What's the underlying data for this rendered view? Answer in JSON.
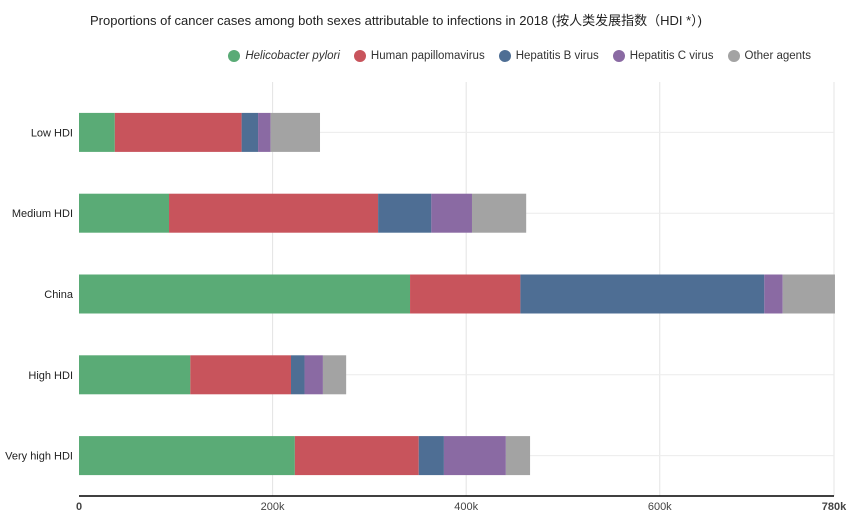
{
  "chart_data": {
    "type": "bar",
    "orientation": "horizontal",
    "stacked": true,
    "title": "Proportions of cancer cases among both sexes attributable to infections in 2018 (按人类发展指数（HDI *）)",
    "xlabel": "",
    "ylabel": "",
    "xlim": [
      0,
      780000
    ],
    "grid": true,
    "legend_position": "top-right",
    "categories": [
      "Low HDI",
      "Medium HDI",
      "China",
      "High HDI",
      "Very high HDI"
    ],
    "x_ticks": [
      {
        "value": 0,
        "label": "0"
      },
      {
        "value": 200000,
        "label": "200k"
      },
      {
        "value": 400000,
        "label": "400k"
      },
      {
        "value": 600000,
        "label": "600k"
      },
      {
        "value": 780000,
        "label": "780k"
      }
    ],
    "series": [
      {
        "name": "Helicobacter pylori",
        "italic": true,
        "color": "#5aab76",
        "values": [
          37000,
          93000,
          342000,
          115000,
          223000
        ]
      },
      {
        "name": "Human papillomavirus",
        "italic": false,
        "color": "#c8545c",
        "values": [
          131000,
          216000,
          114000,
          104000,
          128000
        ]
      },
      {
        "name": "Hepatitis B virus",
        "italic": false,
        "color": "#4e6e94",
        "values": [
          17000,
          55000,
          252000,
          14000,
          26000
        ]
      },
      {
        "name": "Hepatitis C virus",
        "italic": false,
        "color": "#8a6aa3",
        "values": [
          13000,
          42000,
          19000,
          19000,
          64000
        ]
      },
      {
        "name": "Other agents",
        "italic": false,
        "color": "#a3a3a3",
        "values": [
          51000,
          56000,
          54000,
          24000,
          25000
        ]
      }
    ]
  }
}
